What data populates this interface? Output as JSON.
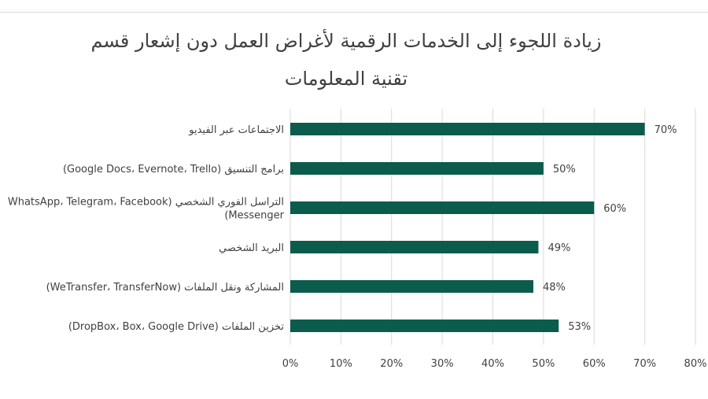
{
  "chart_data": {
    "type": "bar",
    "orientation": "horizontal",
    "title": "زيادة اللجوء إلى الخدمات الرقمية لأغراض العمل دون إشعار قسم تقنية المعلومات",
    "categories": [
      [
        "الاجتماعات عبر الفيديو"
      ],
      [
        "برامج التنسيق (Google Docs، Evernote، Trello)"
      ],
      [
        "التراسل الفوري الشخصي (WhatsApp، Telegram، Facebook",
        "Messenger)"
      ],
      [
        "البريد الشخصي"
      ],
      [
        "المشاركة ونقل الملفات (WeTransfer، TransferNow)"
      ],
      [
        "تخزين الملفات (DropBox، Box، Google Drive)"
      ]
    ],
    "values": [
      70,
      50,
      60,
      49,
      48,
      53
    ],
    "data_labels": [
      "70%",
      "50%",
      "60%",
      "49%",
      "48%",
      "53%"
    ],
    "xlim": [
      0,
      80
    ],
    "x_ticks": [
      0,
      10,
      20,
      30,
      40,
      50,
      60,
      70,
      80
    ],
    "x_tick_labels": [
      "0%",
      "10%",
      "20%",
      "30%",
      "40%",
      "50%",
      "60%",
      "70%",
      "80%"
    ],
    "xlabel": "",
    "ylabel": "",
    "grid": "vertical",
    "bar_color": "#0b5c4d",
    "grid_color": "#d9d9d9"
  }
}
